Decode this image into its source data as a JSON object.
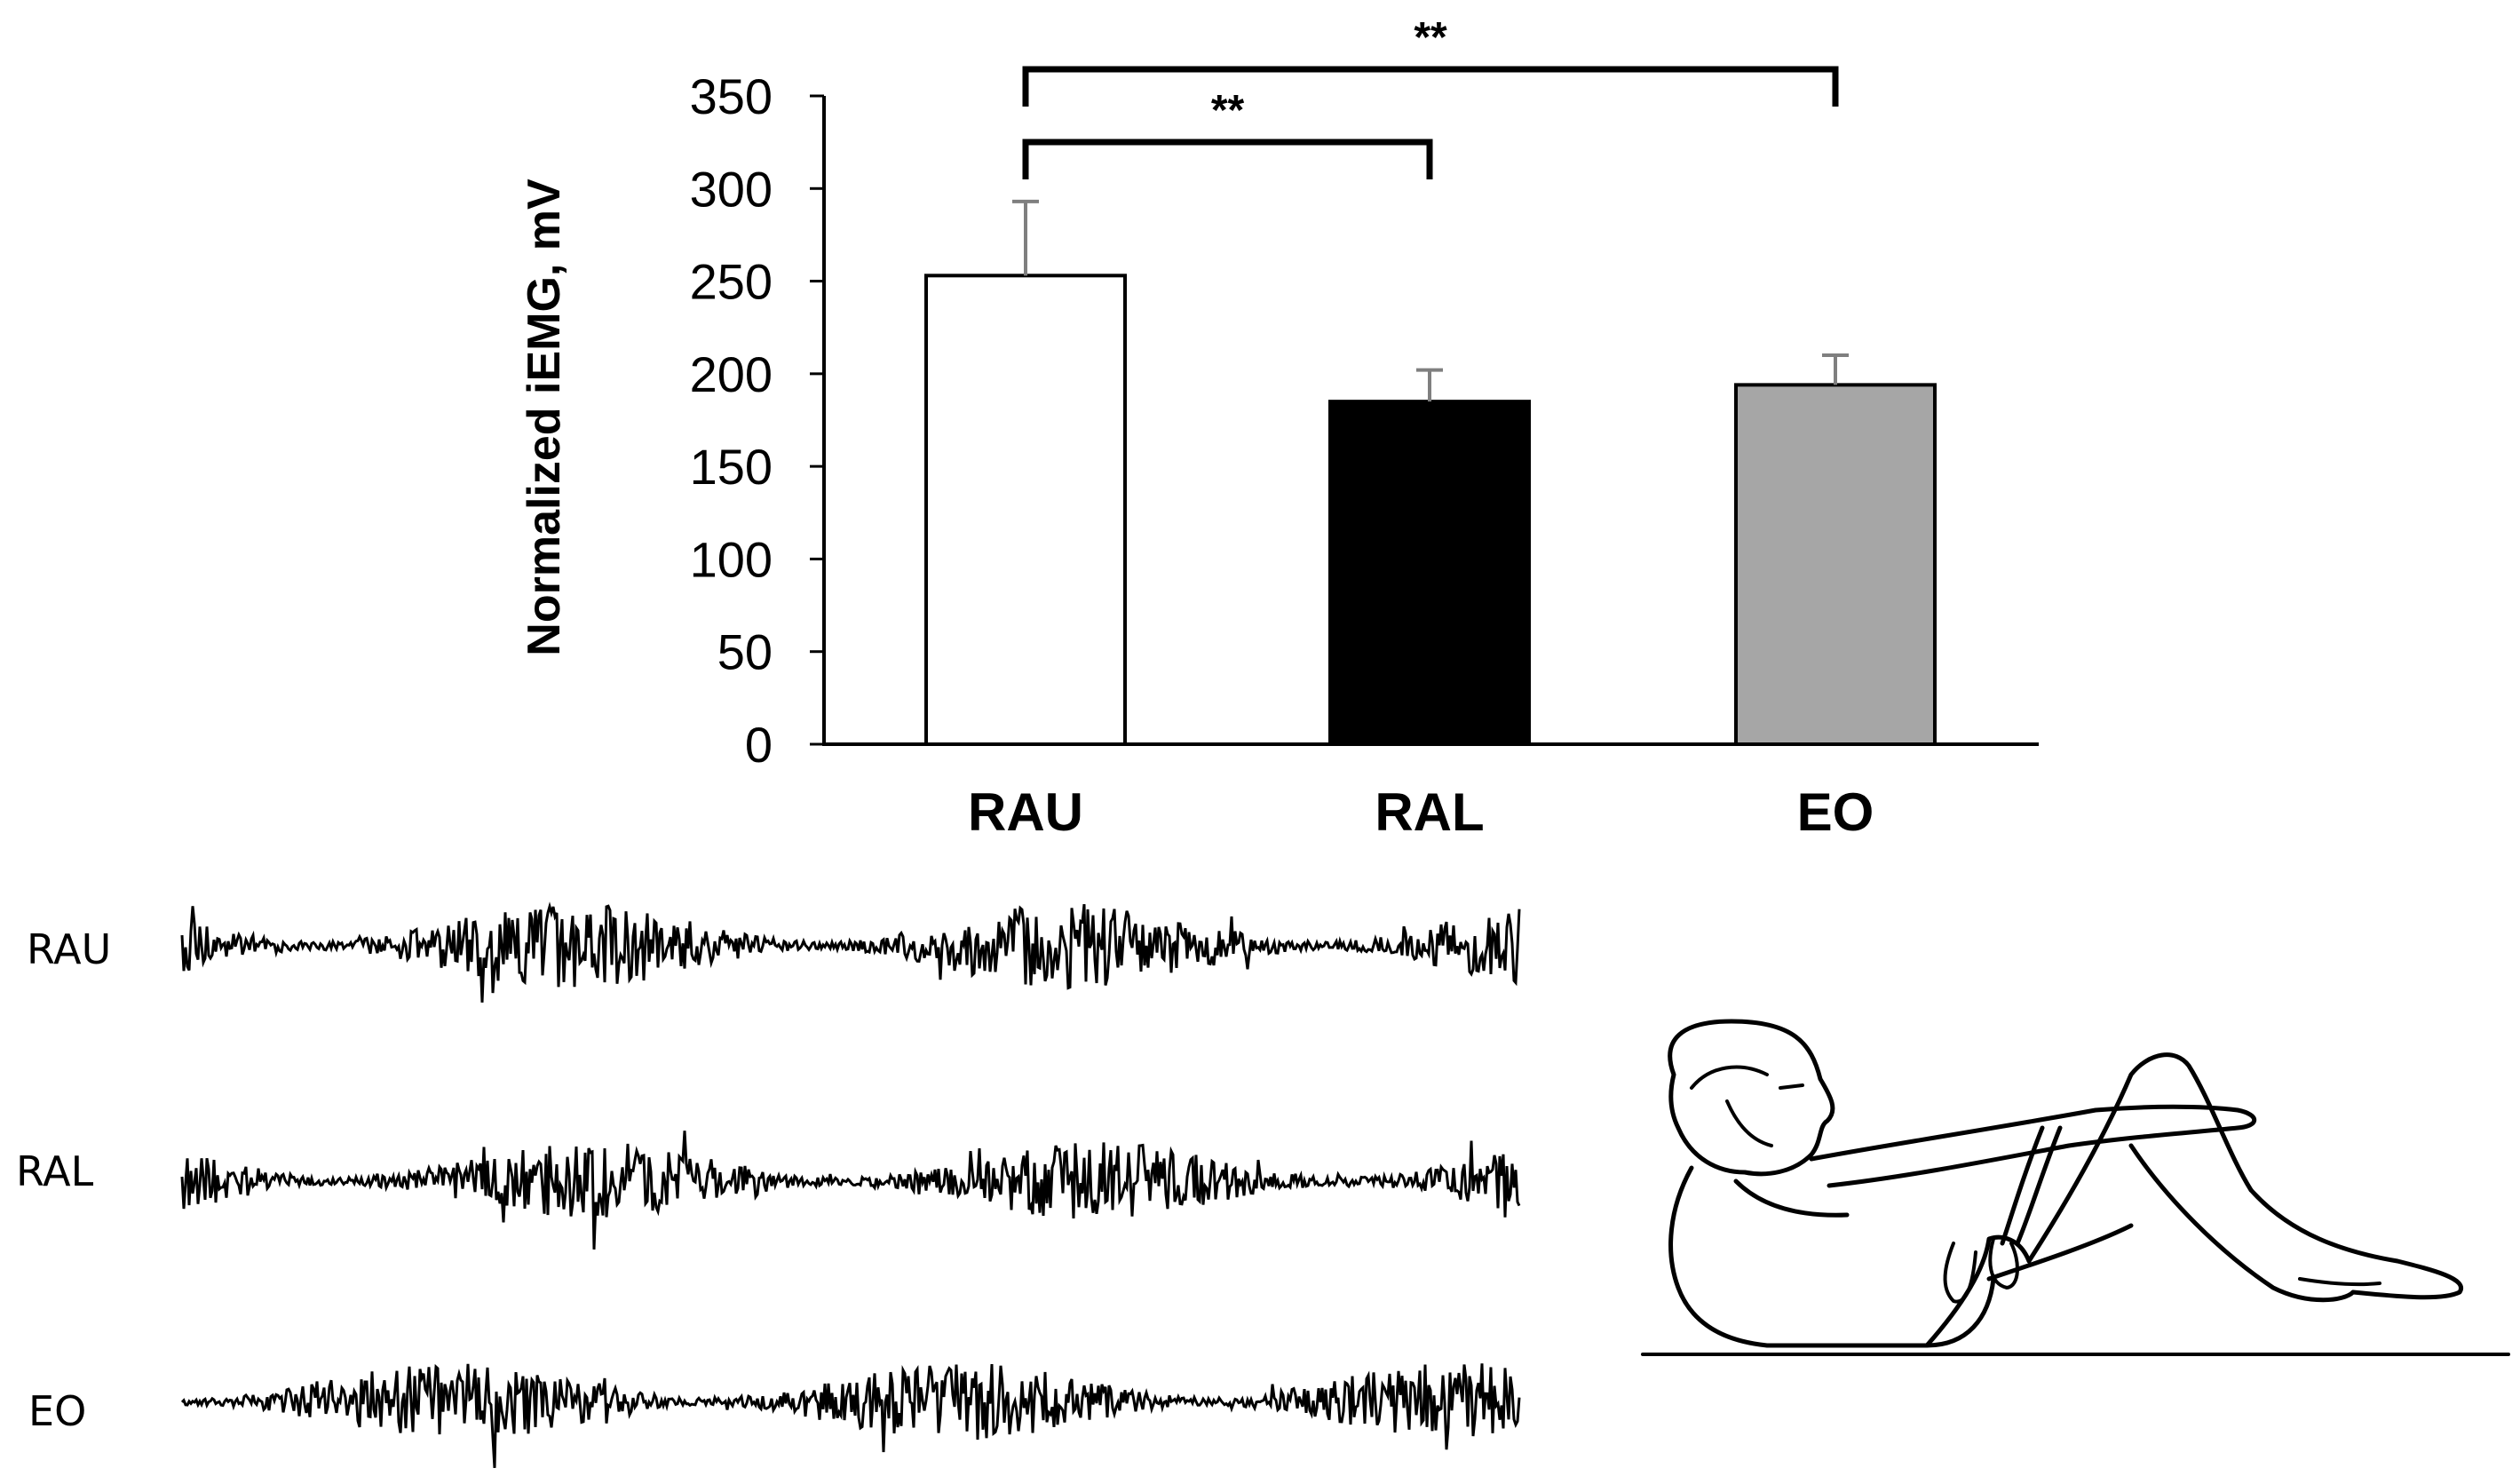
{
  "chart_data": {
    "type": "bar",
    "title": "",
    "xlabel": "",
    "ylabel": "Normalized iEMG, mV",
    "ylim": [
      0,
      350
    ],
    "yticks": [
      0,
      50,
      100,
      150,
      200,
      250,
      300,
      350
    ],
    "categories": [
      "RAU",
      "RAL",
      "EO"
    ],
    "values": [
      253,
      185,
      194
    ],
    "errors": [
      40,
      17,
      16
    ],
    "bar_colors": [
      "#ffffff",
      "#000000",
      "#a6a6a6"
    ],
    "grid": false,
    "legend": "none",
    "significance": [
      {
        "from": "RAU",
        "to": "RAL",
        "label": "**"
      },
      {
        "from": "RAU",
        "to": "EO",
        "label": "**"
      }
    ]
  },
  "emg_traces": {
    "labels": [
      "RAU",
      "RAL",
      "EO"
    ]
  },
  "illustration": {
    "icon": "crunch-exercise-figure-icon"
  }
}
